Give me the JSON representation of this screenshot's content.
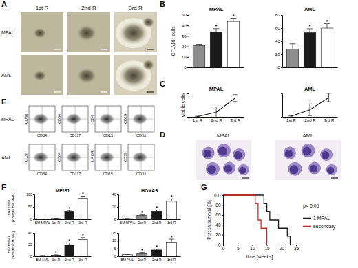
{
  "panels": [
    "A",
    "B",
    "C",
    "D",
    "E",
    "F",
    "G"
  ],
  "colony_photos": {
    "columns": [
      "1st R",
      "2nd R",
      "3rd R"
    ],
    "rows": [
      "MPAL",
      "AML"
    ]
  },
  "cytospin": {
    "labels": [
      "MPAL",
      "AML"
    ]
  },
  "flow_cytometry": {
    "rows": [
      {
        "label": "MPAL",
        "plots": [
          {
            "y_label": "CD38",
            "x_label": "CD34"
          },
          {
            "y_label": "CD64",
            "x_label": "CD117"
          },
          {
            "y_label": "CD4",
            "x_label": "CD15"
          },
          {
            "y_label": "CD19",
            "x_label": "CD33"
          }
        ]
      },
      {
        "label": "AML",
        "plots": [
          {
            "y_label": "CD38",
            "x_label": "CD34"
          },
          {
            "y_label": "CD64",
            "x_label": "CD117"
          },
          {
            "y_label": "HLA DR",
            "x_label": "CD15"
          },
          {
            "y_label": "CD19",
            "x_label": "CD33"
          }
        ]
      }
    ]
  },
  "chart_data": [
    {
      "type": "bar",
      "title": "MPAL",
      "y_label": "CFU/10⁴ cells",
      "categories": [
        null,
        null,
        null
      ],
      "values": [
        21,
        34,
        44
      ],
      "errors": [
        1,
        3,
        3
      ],
      "annotations": [
        null,
        "*",
        "*"
      ],
      "colors": [
        "#8c8c8c",
        "#1a1a1a",
        "#ffffff"
      ],
      "ylim": [
        0,
        50
      ],
      "yticks": [
        0,
        10,
        20,
        30,
        40,
        50
      ],
      "tick_labels": "y"
    },
    {
      "type": "bar",
      "title": "AML",
      "categories": [
        null,
        null,
        null
      ],
      "values": [
        28,
        53,
        60
      ],
      "errors": [
        8,
        6,
        7
      ],
      "annotations": [
        null,
        "*",
        "*"
      ],
      "colors": [
        "#8c8c8c",
        "#1a1a1a",
        "#ffffff"
      ],
      "ylim": [
        0,
        80
      ],
      "yticks": [
        0,
        20,
        40,
        60,
        80
      ],
      "tick_labels": "y"
    },
    {
      "type": "line",
      "title": "MPAL",
      "y_label": "viable cells",
      "categories": [
        "1st R",
        "2nd R",
        "3rd R"
      ],
      "values": [
        0.05,
        0.8,
        3.2
      ],
      "errors": [
        0.05,
        0.9,
        0.6
      ],
      "color": "#1a1a1a",
      "ylim": [
        0,
        4
      ],
      "tick_labels": "x"
    },
    {
      "type": "line",
      "title": "AML",
      "categories": [
        "1st R",
        "2nd R",
        "3rd R"
      ],
      "values": [
        0.1,
        1.2,
        3.3
      ],
      "errors": [
        0.1,
        1.0,
        0.7
      ],
      "color": "#1a1a1a",
      "ylim": [
        0,
        4
      ],
      "tick_labels": "x"
    },
    {
      "type": "bar",
      "title": "MEIS1",
      "y_label": [
        "expression",
        "[x-fold to BM MPAL]"
      ],
      "categories": [
        "BM MPAL",
        "1st R",
        "2nd R",
        "3rd R"
      ],
      "values": [
        1,
        3,
        32,
        85
      ],
      "errors": [
        0.2,
        1,
        4,
        8
      ],
      "annotations": [
        null,
        null,
        "*",
        "*"
      ],
      "colors": [
        "#ffffff",
        "#8c8c8c",
        "#1a1a1a",
        "#ffffff"
      ],
      "ylim": [
        0,
        100
      ],
      "yticks": [
        0,
        50,
        100
      ]
    },
    {
      "type": "bar",
      "title": "HOXA9",
      "categories": [
        "BM MPAL",
        "1st R",
        "2nd R",
        "3rd R"
      ],
      "values": [
        1,
        6,
        13,
        29
      ],
      "errors": [
        0.2,
        1,
        2,
        4
      ],
      "annotations": [
        null,
        "*",
        "*",
        "*"
      ],
      "colors": [
        "#ffffff",
        "#8c8c8c",
        "#1a1a1a",
        "#ffffff"
      ],
      "ylim": [
        0,
        40
      ],
      "yticks": [
        0,
        20,
        40
      ]
    },
    {
      "type": "bar",
      "y_label": [
        "expression",
        "[x-fold to BM AML]"
      ],
      "categories": [
        "BM AML",
        "1st R",
        "2nd R",
        "3rd R"
      ],
      "values": [
        1,
        2,
        19,
        29
      ],
      "errors": [
        0.2,
        0.5,
        4,
        3
      ],
      "annotations": [
        null,
        "*",
        "*",
        "*"
      ],
      "colors": [
        "#ffffff",
        "#8c8c8c",
        "#1a1a1a",
        "#ffffff"
      ],
      "ylim": [
        0,
        40
      ],
      "yticks": [
        0,
        20,
        40
      ]
    },
    {
      "type": "bar",
      "categories": [
        "BM AML",
        "1st R",
        "2nd R",
        "3rd R"
      ],
      "values": [
        1,
        2,
        4,
        9
      ],
      "errors": [
        0.2,
        0.5,
        0.6,
        2
      ],
      "annotations": [
        null,
        "*",
        "*",
        "*"
      ],
      "colors": [
        "#ffffff",
        "#8c8c8c",
        "#1a1a1a",
        "#ffffff"
      ],
      "ylim": [
        0,
        15
      ],
      "yticks": [
        0,
        5,
        10,
        15
      ]
    },
    {
      "type": "line",
      "x_label": "time [weeks]",
      "y_label": "Percent survival [%]",
      "series": [
        {
          "name": "1 MPAL",
          "color": "#1a1a1a",
          "x": [
            0,
            14,
            15,
            16,
            19,
            22,
            23
          ],
          "values": [
            100,
            83,
            67,
            50,
            33,
            17,
            0
          ]
        },
        {
          "name": "secondary",
          "color": "#d7261e",
          "x": [
            0,
            11,
            12,
            13,
            15
          ],
          "values": [
            100,
            83,
            50,
            33,
            0
          ]
        }
      ],
      "xlim": [
        0,
        25
      ],
      "xticks": [
        0,
        5,
        10,
        15,
        20,
        25
      ],
      "ylim": [
        0,
        100
      ],
      "yticks": [
        0,
        20,
        40,
        60,
        80,
        100
      ],
      "annotations": [
        "p< 0.05"
      ],
      "line_style": "step",
      "legend": "right"
    }
  ]
}
